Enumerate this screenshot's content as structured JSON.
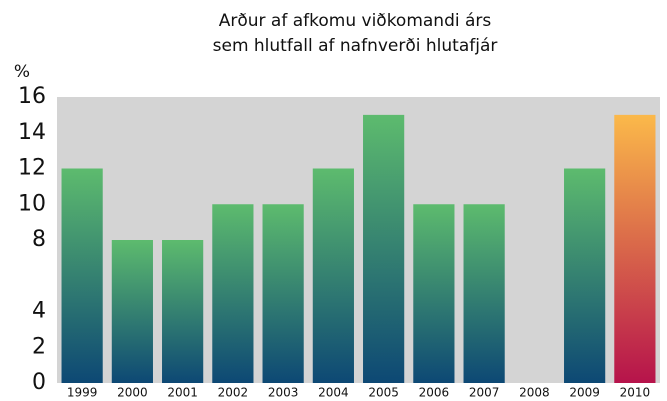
{
  "chart_data": {
    "type": "bar",
    "title": "Arður af afkomu viðkomandi árs",
    "subtitle": "sem hlutfall af nafnverði hlutafjár",
    "y_label": "%",
    "categories": [
      "1999",
      "2000",
      "2001",
      "2002",
      "2003",
      "2004",
      "2005",
      "2006",
      "2007",
      "2008",
      "2009",
      "2010"
    ],
    "values": [
      12,
      8,
      8,
      10,
      10,
      12,
      15,
      10,
      10,
      0,
      12,
      15
    ],
    "colors": [
      [
        "#5dbb6e",
        "#0d4874"
      ],
      [
        "#5dbb6e",
        "#0d4874"
      ],
      [
        "#5dbb6e",
        "#0d4874"
      ],
      [
        "#5dbb6e",
        "#0d4874"
      ],
      [
        "#5dbb6e",
        "#0d4874"
      ],
      [
        "#5dbb6e",
        "#0d4874"
      ],
      [
        "#5dbb6e",
        "#0d4874"
      ],
      [
        "#5dbb6e",
        "#0d4874"
      ],
      [
        "#5dbb6e",
        "#0d4874"
      ],
      [
        "#5dbb6e",
        "#0d4874"
      ],
      [
        "#5dbb6e",
        "#0d4874"
      ],
      [
        "#fbb94a",
        "#b6134b"
      ]
    ],
    "background": "#d4d4d4",
    "ylim": [
      0,
      16
    ],
    "yticks": [
      0,
      2,
      4,
      8,
      10,
      12,
      14,
      16
    ],
    "grid": false
  }
}
